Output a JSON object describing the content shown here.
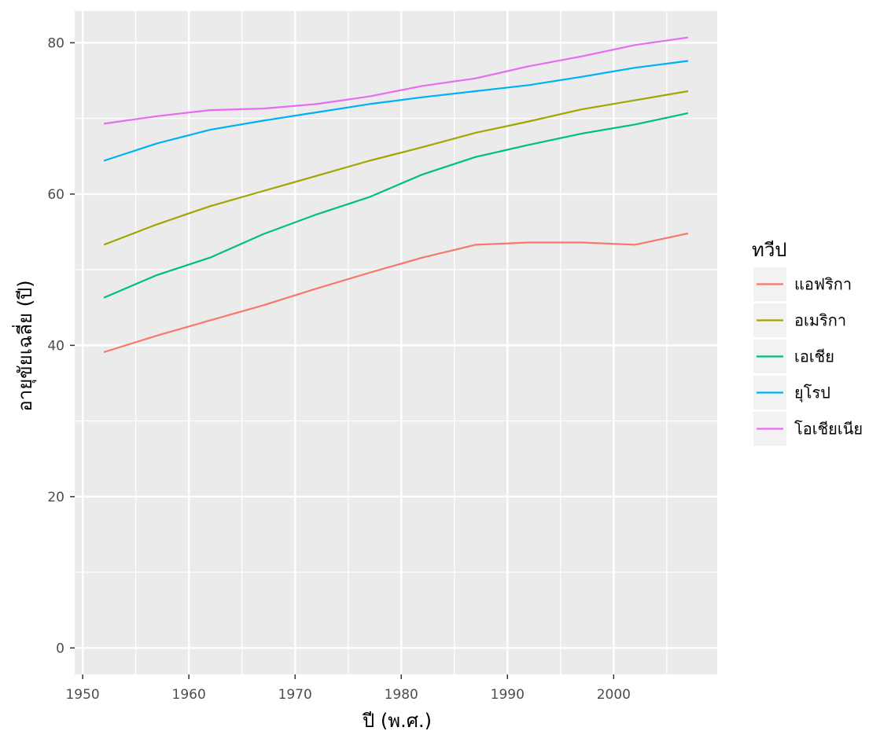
{
  "chart_data": {
    "type": "line",
    "xlabel": "ปี (พ.ศ.)",
    "ylabel": "อายุขัยเฉลี่ย (ปี)",
    "xlim": [
      1949.25,
      2009.75
    ],
    "ylim": [
      -3.5,
      84.2
    ],
    "x_ticks": [
      1950,
      1960,
      1970,
      1980,
      1990,
      2000
    ],
    "x_tick_labels": [
      "1950",
      "1960",
      "1970",
      "1980",
      "1990",
      "2000"
    ],
    "y_ticks": [
      0,
      20,
      40,
      60,
      80
    ],
    "y_tick_labels": [
      "0",
      "20",
      "40",
      "60",
      "80"
    ],
    "grid": true,
    "legend": {
      "title": "ทวีป",
      "position": "right"
    },
    "x": [
      1952,
      1957,
      1962,
      1967,
      1972,
      1977,
      1982,
      1987,
      1992,
      1997,
      2002,
      2007
    ],
    "series": [
      {
        "name": "แอฟริกา",
        "color": "#F8766D",
        "values": [
          39.1,
          41.3,
          43.3,
          45.3,
          47.5,
          49.6,
          51.6,
          53.3,
          53.6,
          53.6,
          53.3,
          54.8
        ]
      },
      {
        "name": "อเมริกา",
        "color": "#A3A500",
        "values": [
          53.3,
          56.0,
          58.4,
          60.4,
          62.4,
          64.4,
          66.2,
          68.1,
          69.6,
          71.2,
          72.4,
          73.6
        ]
      },
      {
        "name": "เอเชีย",
        "color": "#00BF7D",
        "values": [
          46.3,
          49.3,
          51.6,
          54.7,
          57.3,
          59.6,
          62.6,
          64.9,
          66.5,
          68.0,
          69.2,
          70.7
        ]
      },
      {
        "name": "ยุโรป",
        "color": "#00B0F6",
        "values": [
          64.4,
          66.7,
          68.5,
          69.7,
          70.8,
          71.9,
          72.8,
          73.6,
          74.4,
          75.5,
          76.7,
          77.6
        ]
      },
      {
        "name": "โอเชียเนีย",
        "color": "#E76BF3",
        "values": [
          69.3,
          70.3,
          71.1,
          71.3,
          71.9,
          72.9,
          74.3,
          75.3,
          76.9,
          78.2,
          79.7,
          80.7
        ]
      }
    ]
  }
}
